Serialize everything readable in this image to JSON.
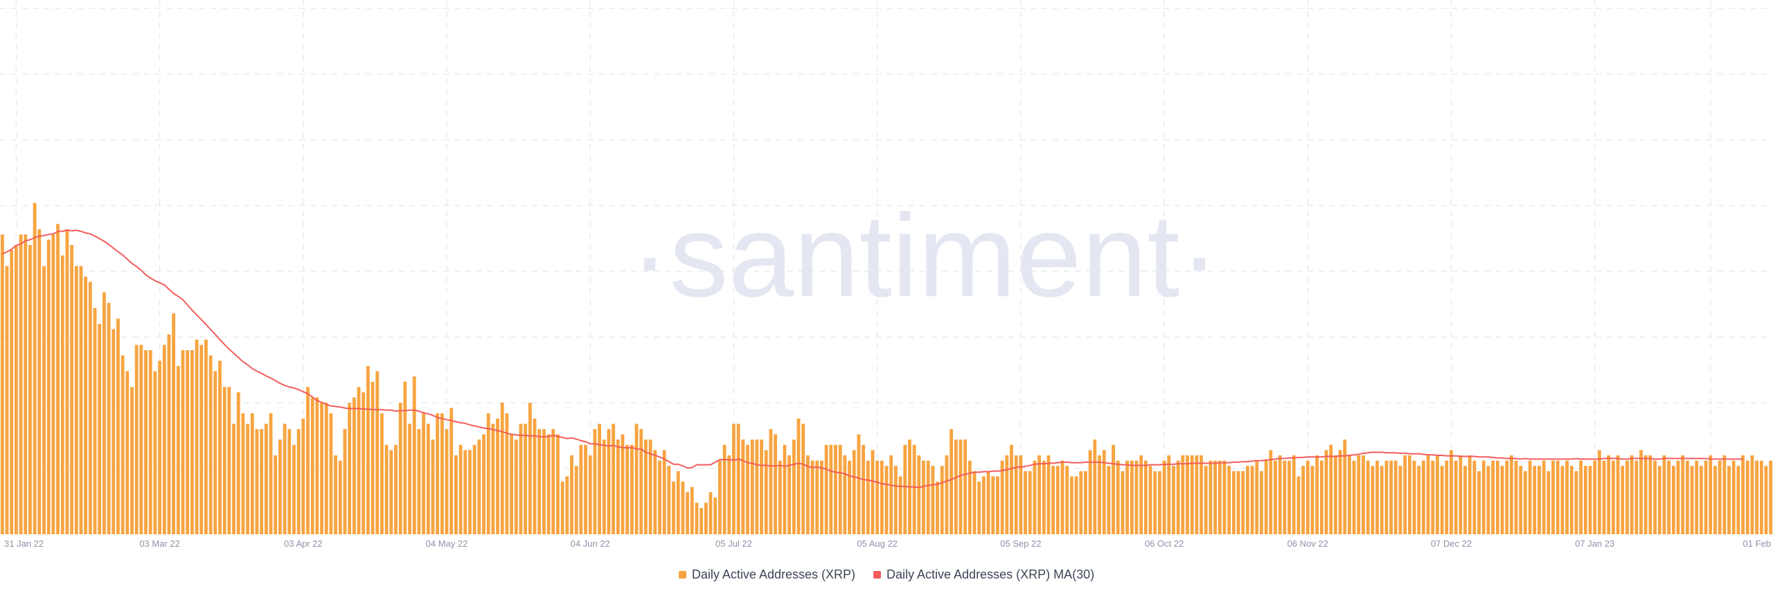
{
  "watermark": "·santiment·",
  "colors": {
    "bars": "#f7a440",
    "ma": "#f25c5c",
    "grid": "#e3e6ec",
    "ticks": "#8a93a6"
  },
  "chart_data": {
    "type": "bar",
    "title": "",
    "xlabel": "",
    "ylabel": "",
    "x_ticks": [
      "31 Jan 22",
      "03 Mar 22",
      "03 Apr 22",
      "04 May 22",
      "04 Jun 22",
      "05 Jul 22",
      "05 Aug 22",
      "05 Sep 22",
      "06 Oct 22",
      "06 Nov 22",
      "07 Dec 22",
      "07 Jan 23",
      "01 Feb"
    ],
    "x_tick_index": [
      3,
      34,
      65,
      96,
      127,
      158,
      189,
      220,
      251,
      282,
      313,
      344,
      369
    ],
    "ylim": [
      0,
      100
    ],
    "grid": true,
    "legend_position": "bottom-center",
    "series": [
      {
        "name": "Daily Active Addresses (XRP)",
        "kind": "bar",
        "values": [
          57,
          51,
          54,
          55,
          57,
          57,
          55,
          63,
          58,
          51,
          56,
          57,
          59,
          53,
          58,
          55,
          51,
          51,
          49,
          48,
          43,
          40,
          46,
          44,
          39,
          41,
          34,
          31,
          28,
          36,
          36,
          35,
          35,
          31,
          33,
          36,
          38,
          42,
          32,
          35,
          35,
          35,
          37,
          36,
          37,
          34,
          31,
          33,
          28,
          28,
          21,
          27,
          23,
          21,
          23,
          20,
          20,
          21,
          23,
          15,
          18,
          21,
          20,
          17,
          20,
          22,
          28,
          26,
          26,
          25,
          25,
          23,
          15,
          14,
          20,
          25,
          26,
          28,
          27,
          32,
          29,
          31,
          23,
          17,
          16,
          17,
          25,
          29,
          21,
          30,
          20,
          23,
          21,
          18,
          23,
          23,
          20,
          24,
          15,
          17,
          16,
          16,
          17,
          18,
          19,
          23,
          21,
          22,
          25,
          23,
          19,
          18,
          21,
          21,
          25,
          22,
          20,
          20,
          19,
          20,
          19,
          10,
          11,
          15,
          13,
          17,
          17,
          15,
          20,
          21,
          18,
          20,
          21,
          18,
          19,
          17,
          17,
          21,
          20,
          18,
          18,
          16,
          14,
          16,
          13,
          10,
          12,
          10,
          8,
          9,
          6,
          5,
          6,
          8,
          7,
          14,
          17,
          15,
          21,
          21,
          18,
          17,
          18,
          18,
          18,
          16,
          20,
          19,
          14,
          17,
          15,
          18,
          22,
          21,
          15,
          14,
          14,
          14,
          17,
          17,
          17,
          17,
          15,
          14,
          16,
          19,
          17,
          14,
          16,
          14,
          14,
          13,
          15,
          13,
          11,
          17,
          18,
          17,
          15,
          14,
          14,
          13,
          10,
          13,
          15,
          20,
          18,
          18,
          18,
          14,
          12,
          10,
          11,
          12,
          11,
          11,
          14,
          15,
          17,
          15,
          15,
          12,
          12,
          14,
          15,
          14,
          15,
          13,
          13,
          14,
          13,
          11,
          11,
          12,
          12,
          16,
          18,
          15,
          16,
          13,
          17,
          14,
          12,
          14,
          14,
          14,
          15,
          14,
          13,
          12,
          12,
          14,
          15,
          13,
          14,
          15,
          15,
          15,
          15,
          15,
          13,
          14,
          14,
          14,
          14,
          13,
          12,
          12,
          12,
          13,
          13,
          14,
          12,
          14,
          16,
          14,
          15,
          14,
          14,
          15,
          11,
          13,
          14,
          13,
          15,
          14,
          16,
          17,
          15,
          16,
          18,
          15,
          14,
          15,
          15,
          14,
          13,
          14,
          13,
          14,
          14,
          14,
          13,
          15,
          15,
          14,
          13,
          14,
          15,
          14,
          15,
          13,
          14,
          16,
          14,
          15,
          13,
          15,
          14,
          12,
          14,
          13,
          14,
          14,
          13,
          14,
          15,
          14,
          13,
          12,
          14,
          13,
          13,
          14,
          12,
          14,
          14,
          13,
          14,
          13,
          12,
          14,
          13,
          13,
          14,
          16,
          14,
          15,
          14,
          15,
          13,
          14,
          15,
          14,
          16,
          15,
          15,
          14,
          13,
          15,
          14,
          13,
          14,
          15,
          14,
          13,
          14,
          13,
          14,
          15,
          13,
          14,
          15,
          13,
          14,
          13,
          15,
          14,
          15,
          14,
          14,
          13,
          14
        ],
        "color": "#f7a440"
      },
      {
        "name": "Daily Active Addresses (XRP) MA(30)",
        "kind": "line",
        "values": [
          53.3,
          53.7,
          54.2,
          54.9,
          55.2,
          55.8,
          56.0,
          56.4,
          56.7,
          56.8,
          57.0,
          57.1,
          57.6,
          57.6,
          57.8,
          57.7,
          57.8,
          57.6,
          57.3,
          57.1,
          56.7,
          56.2,
          55.7,
          55.1,
          54.4,
          53.7,
          53.1,
          52.3,
          51.5,
          50.9,
          50.2,
          49.3,
          48.7,
          48.2,
          47.8,
          47.4,
          46.6,
          45.8,
          45.2,
          44.6,
          43.6,
          42.6,
          41.7,
          40.8,
          39.9,
          38.9,
          38.0,
          37.0,
          36.1,
          35.2,
          34.4,
          33.6,
          32.8,
          32.2,
          31.5,
          31.0,
          30.6,
          30.1,
          29.7,
          29.2,
          28.7,
          28.3,
          28.0,
          27.8,
          27.5,
          27.1,
          26.7,
          26.1,
          25.4,
          25.1,
          24.7,
          24.4,
          24.3,
          24.2,
          24.0,
          23.9,
          23.9,
          23.9,
          23.8,
          23.8,
          23.7,
          23.7,
          23.7,
          23.6,
          23.6,
          23.4,
          23.5,
          23.5,
          23.6,
          23.6,
          23.4,
          23.1,
          22.9,
          22.6,
          22.2,
          22.0,
          21.8,
          21.6,
          21.4,
          21.2,
          21.1,
          20.8,
          20.6,
          20.4,
          20.2,
          20.1,
          19.9,
          19.7,
          19.5,
          19.2,
          19.0,
          18.9,
          18.8,
          18.8,
          18.7,
          18.7,
          18.6,
          18.5,
          18.6,
          18.8,
          18.6,
          18.4,
          18.2,
          18.3,
          18.1,
          17.8,
          17.6,
          17.2,
          17.2,
          17.0,
          16.9,
          16.8,
          16.9,
          16.6,
          16.5,
          16.4,
          16.5,
          16.2,
          16.2,
          15.6,
          15.3,
          15.0,
          14.7,
          14.3,
          13.8,
          13.3,
          13.3,
          13.0,
          12.6,
          12.7,
          13.2,
          13.2,
          13.2,
          13.2,
          13.7,
          14.2,
          14.2,
          14.2,
          14.1,
          14.3,
          14.0,
          13.6,
          13.5,
          13.2,
          13.1,
          13.1,
          13.0,
          13.0,
          13.1,
          12.9,
          13.1,
          13.3,
          13.5,
          13.3,
          12.9,
          12.7,
          12.8,
          12.6,
          12.4,
          12.0,
          11.8,
          11.7,
          11.5,
          11.1,
          10.9,
          10.7,
          10.4,
          10.3,
          10.1,
          9.9,
          9.6,
          9.5,
          9.3,
          9.2,
          9.1,
          9.1,
          9.0,
          9.0,
          8.9,
          9.1,
          9.3,
          9.4,
          9.5,
          9.8,
          10.1,
          10.4,
          10.8,
          11.2,
          11.4,
          11.6,
          11.8,
          11.8,
          11.9,
          11.9,
          12.0,
          12.0,
          12.1,
          12.3,
          12.5,
          12.7,
          12.8,
          12.9,
          13.1,
          13.3,
          13.4,
          13.4,
          13.5,
          13.5,
          13.6,
          13.7,
          13.7,
          13.6,
          13.6,
          13.6,
          13.7,
          13.7,
          13.7,
          13.7,
          13.6,
          13.5,
          13.4,
          13.3,
          13.2,
          13.2,
          13.1,
          13.1,
          13.1,
          13.1,
          13.2,
          13.2,
          13.2,
          13.3,
          13.3,
          13.3,
          13.4,
          13.4,
          13.4,
          13.5,
          13.5,
          13.5,
          13.5,
          13.5,
          13.5,
          13.6,
          13.6,
          13.6,
          13.7,
          13.7,
          13.8,
          13.8,
          13.9,
          14.0,
          14.0,
          14.1,
          14.2,
          14.3,
          14.4,
          14.4,
          14.5,
          14.5,
          14.6,
          14.6,
          14.7,
          14.7,
          14.7,
          14.7,
          14.8,
          14.8,
          14.8,
          14.9,
          14.9,
          15.0,
          15.1,
          15.2,
          15.4,
          15.5,
          15.6,
          15.6,
          15.6,
          15.5,
          15.5,
          15.5,
          15.4,
          15.4,
          15.3,
          15.3,
          15.3,
          15.2,
          15.1,
          15.1,
          15.0,
          15.0,
          14.9,
          14.9,
          14.9,
          14.8,
          14.8,
          14.8,
          14.8,
          14.7,
          14.7,
          14.7,
          14.6,
          14.5,
          14.5,
          14.4,
          14.4,
          14.4,
          14.3,
          14.4,
          14.3,
          14.3,
          14.3,
          14.3,
          14.3,
          14.3,
          14.3,
          14.3,
          14.3,
          14.3,
          14.4,
          14.3,
          14.3,
          14.3,
          14.3,
          14.3,
          14.4,
          14.4,
          14.4,
          14.4,
          14.3,
          14.3,
          14.4,
          14.4,
          14.4,
          14.4,
          14.4,
          14.3,
          14.3,
          14.4,
          14.4,
          14.4,
          14.4,
          14.4,
          14.4,
          14.4,
          14.4,
          14.4,
          14.4,
          14.3,
          14.3,
          14.3,
          14.3,
          14.3,
          14.3,
          14.3,
          14.3
        ],
        "color": "#f25c5c"
      }
    ]
  },
  "legend": {
    "item0": "Daily Active Addresses (XRP)",
    "item1": "Daily Active Addresses (XRP) MA(30)"
  }
}
